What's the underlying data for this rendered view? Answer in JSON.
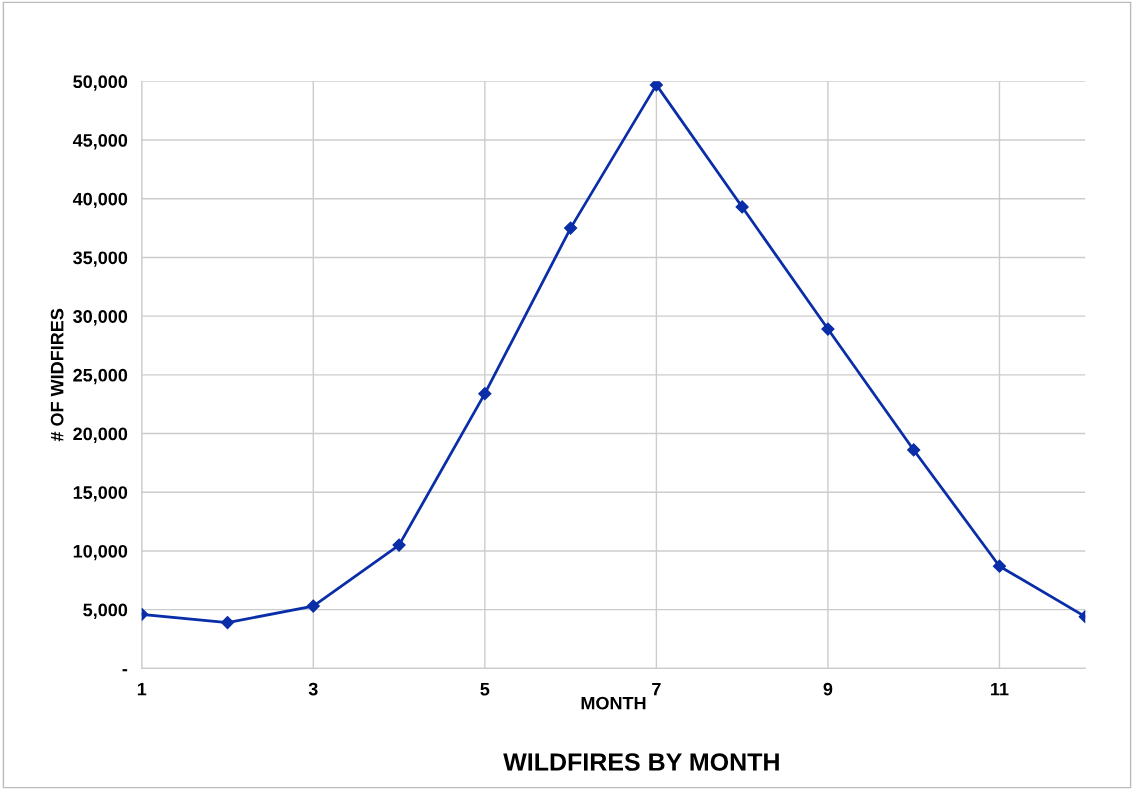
{
  "chart_data": {
    "type": "line",
    "title": "WILDFIRES BY MONTH",
    "xlabel": "MONTH",
    "ylabel": "# OF WIDFIRES",
    "x": [
      1,
      2,
      3,
      4,
      5,
      6,
      7,
      8,
      9,
      10,
      11,
      12
    ],
    "series": [
      {
        "color": "#0a2ea8",
        "values": [
          4600,
          3900,
          5300,
          10500,
          23400,
          37500,
          49700,
          39300,
          28900,
          18600,
          8700,
          4400
        ]
      }
    ],
    "xlim": [
      1,
      12
    ],
    "xticks": [
      1,
      3,
      5,
      7,
      9,
      11
    ],
    "ylim": [
      0,
      50000
    ],
    "yticks": [
      {
        "value": 0,
        "label": "-"
      },
      {
        "value": 5000,
        "label": "5,000"
      },
      {
        "value": 10000,
        "label": "10,000"
      },
      {
        "value": 15000,
        "label": "15,000"
      },
      {
        "value": 20000,
        "label": "20,000"
      },
      {
        "value": 25000,
        "label": "25,000"
      },
      {
        "value": 30000,
        "label": "30,000"
      },
      {
        "value": 35000,
        "label": "35,000"
      },
      {
        "value": 40000,
        "label": "40,000"
      },
      {
        "value": 45000,
        "label": "45,000"
      },
      {
        "value": 50000,
        "label": "50,000"
      }
    ],
    "grid": true,
    "marker": "diamond",
    "line_style": "solid",
    "legend": false
  }
}
